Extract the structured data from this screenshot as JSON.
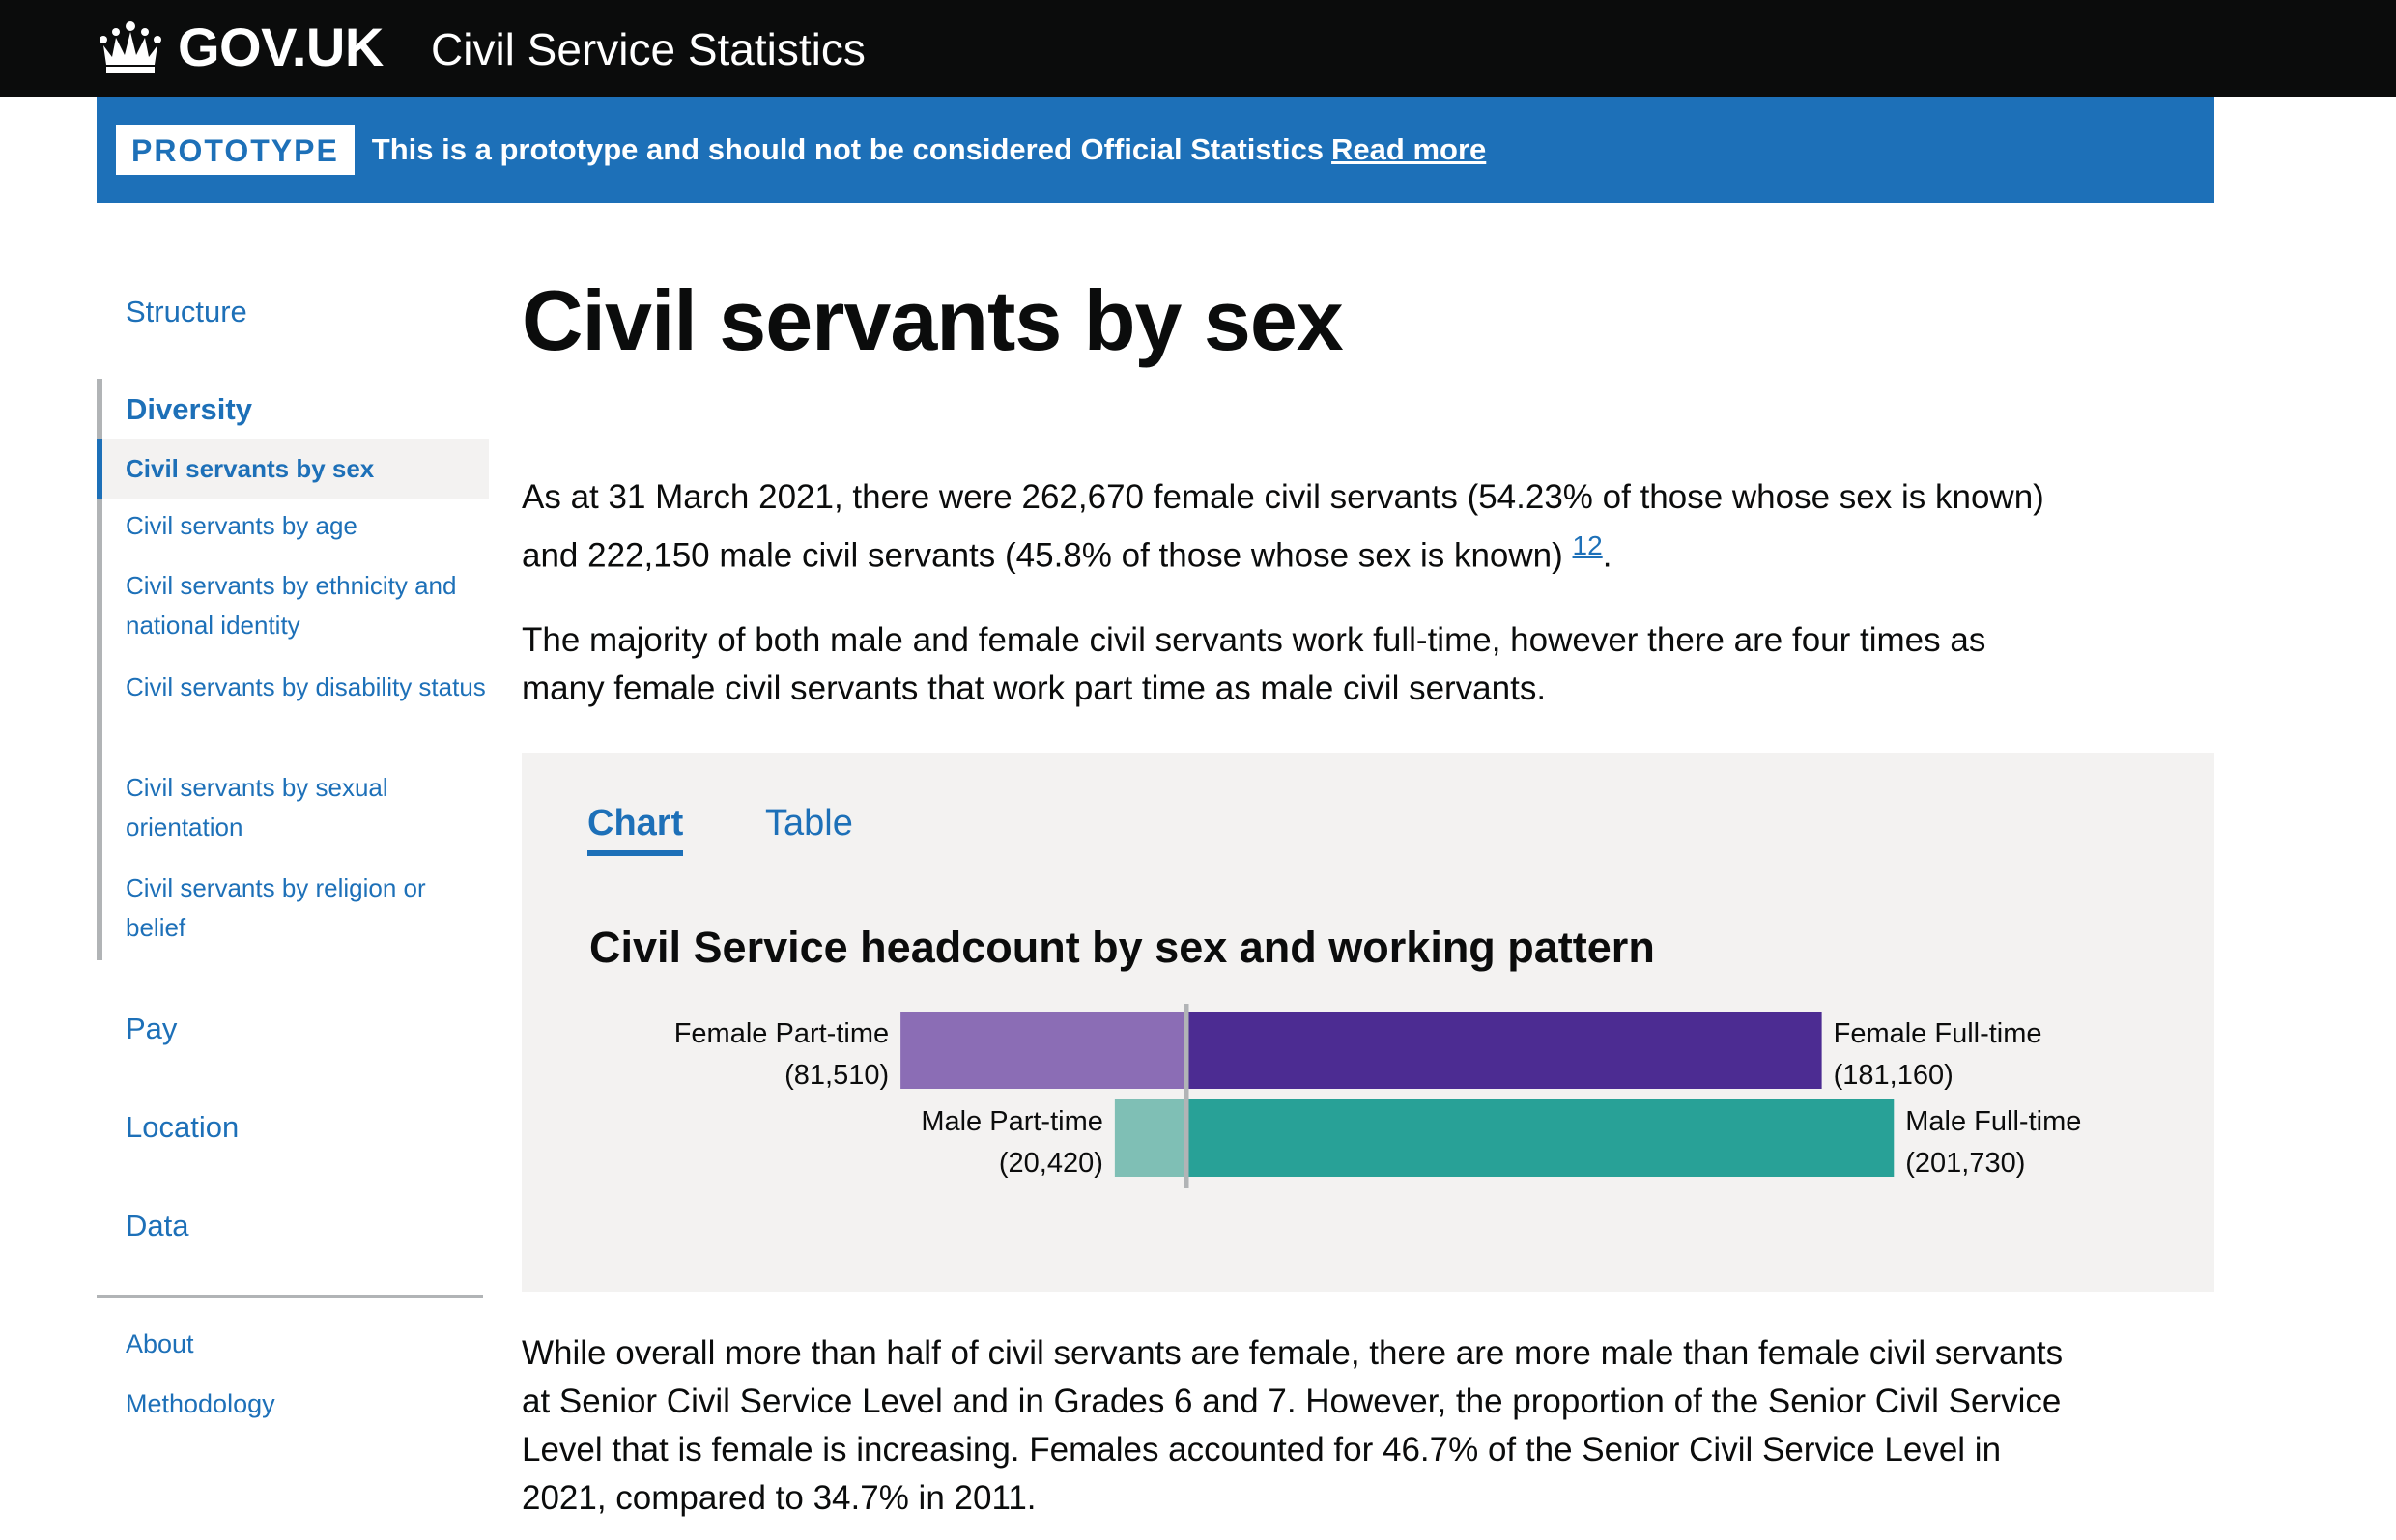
{
  "header": {
    "logo_text": "GOV.UK",
    "service_name": "Civil Service Statistics"
  },
  "banner": {
    "tag": "PROTOTYPE",
    "text": "This is a prototype and should not be considered Official Statistics",
    "link": "Read more"
  },
  "sidebar": {
    "structure": "Structure",
    "group_title": "Diversity",
    "items": [
      {
        "label": "Civil servants by sex",
        "current": true
      },
      {
        "label": "Civil servants by age"
      },
      {
        "label": "Civil servants by ethnicity and national identity"
      },
      {
        "label": "Civil servants by disability status"
      },
      {
        "label": "Civil servants by sexual orientation"
      },
      {
        "label": "Civil servants by religion or belief"
      }
    ],
    "pay": "Pay",
    "location": "Location",
    "data": "Data",
    "about": "About",
    "methodology": "Methodology"
  },
  "main": {
    "title": "Civil servants by sex",
    "para1": "As at 31 March 2021, there were 262,670 female civil servants (54.23% of those whose sex is known) and 222,150 male civil servants (45.8% of those whose sex is known)",
    "para1_footnote": "12",
    "para1_end": ".",
    "para2": "The majority of both male and female civil servants work full-time, however there are four times as many female civil servants that work part time as male civil servants.",
    "para3": "While overall more than half of civil servants are female, there are more male than female civil servants at Senior Civil Service Level and in Grades 6 and 7. However, the proportion of the Senior Civil Service Level that is female is increasing. Females accounted for 46.7% of the Senior Civil Service Level in 2021, compared to 34.7% in 2011."
  },
  "tabs": {
    "chart": "Chart",
    "table": "Table"
  },
  "chart_data": {
    "type": "bar",
    "title": "Civil Service headcount by sex and working pattern",
    "orientation": "horizontal-diverging",
    "categories": [
      "Female",
      "Male"
    ],
    "series": [
      {
        "name": "Part-time",
        "values": [
          81510,
          20420
        ],
        "labels": [
          "Female Part-time",
          "Male Part-time"
        ],
        "display": [
          "(81,510)",
          "(20,420)"
        ],
        "direction": "left"
      },
      {
        "name": "Full-time",
        "values": [
          181160,
          201730
        ],
        "labels": [
          "Female Full-time",
          "Male Full-time"
        ],
        "display": [
          "(181,160)",
          "(201,730)"
        ],
        "direction": "right"
      }
    ],
    "colors": {
      "female_part": "#8b6db5",
      "female_full": "#4c2c92",
      "male_part": "#7fbfb5",
      "male_full": "#28a197",
      "axis": "#b1b4b6"
    },
    "grid": false,
    "legend": "none"
  }
}
